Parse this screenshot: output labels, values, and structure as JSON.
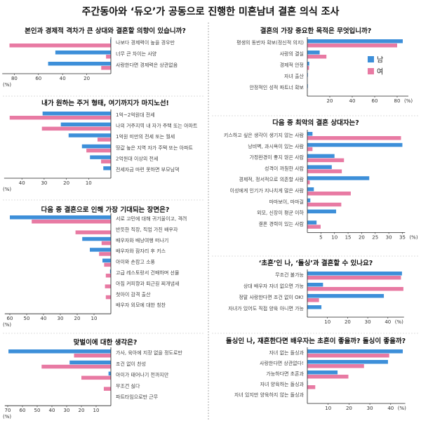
{
  "title": "주간동아와 ‘듀오’가 공동으로 진행한 미혼남녀 결혼 의식 조사",
  "legend": {
    "male": "남",
    "female": "여"
  },
  "colors": {
    "male": "#3d8fd9",
    "female": "#e87aa3",
    "axis": "#222222",
    "divider": "#999999"
  },
  "chart_data": [
    {
      "type": "bar",
      "title": "본인과 경제적 격차가 큰 상대와 결혼할 의향이 있습니까?",
      "unit_label": "(%)",
      "ticks": [
        80,
        60,
        40,
        20
      ],
      "xlim": [
        0,
        90
      ],
      "categories": [
        "나보다 경제력이 높을 경우만",
        "너무 큰 차이는 사양",
        "사랑한다면 경제력은 상관없음"
      ],
      "series": [
        {
          "name": "남",
          "values": [
            0.5,
            46,
            52
          ]
        },
        {
          "name": "여",
          "values": [
            84,
            4,
            8
          ]
        }
      ]
    },
    {
      "type": "bar",
      "title": "내가 원하는 주거 형태, 여기까지가 마지노선!",
      "unit_label": "(%)",
      "ticks": [
        40,
        30,
        20,
        10
      ],
      "xlim": [
        0,
        48
      ],
      "categories": [
        "1억~2억원대 전세",
        "나의 거주지역 내 자가 주택 또는 아파트",
        "1억원 미만의 전세 또는 월세",
        "땅값 높은 지역 자가 주택 또는 아파트",
        "2억원대 이상의 전세",
        "전세자금 마련 못하면 부모님댁"
      ],
      "series": [
        {
          "name": "남",
          "values": [
            30.7,
            22.5,
            19,
            13,
            9.4,
            3.4
          ]
        },
        {
          "name": "여",
          "values": [
            45.5,
            31,
            6,
            11,
            4.4,
            0
          ]
        }
      ]
    },
    {
      "type": "bar",
      "title": "다음 중 결혼으로 인해 가장 기대되는 장면은?",
      "unit_label": "(%)",
      "ticks": [
        60,
        50,
        40,
        30,
        20,
        10
      ],
      "xlim": [
        0,
        63
      ],
      "categories": [
        "서로 고민에 대해 귀기울이고, 격려",
        "반듯한 직장, 직업 가진 배우자",
        "배우자와 배낭여행 떠나기",
        "배우자와 잠자리 후 키스",
        "아이와 손잡고 소풍",
        "고급 레스토랑서 건배하며 선물",
        "아침 커피향과 퇴근길 찌개냄새",
        "첫아이 감격 출산",
        "배우자 외모에 대한 칭찬"
      ],
      "series": [
        {
          "name": "남",
          "values": [
            60,
            0,
            17,
            12.5,
            5,
            0.5,
            0,
            0,
            0
          ]
        },
        {
          "name": "여",
          "values": [
            47,
            21,
            5.5,
            7,
            4,
            3,
            3.5,
            3,
            0
          ]
        }
      ]
    },
    {
      "type": "bar",
      "title": "맞벌이에 대한 생각은?",
      "unit_label": "(%)",
      "ticks": [
        70,
        60,
        50,
        40,
        30,
        20,
        10
      ],
      "xlim": [
        0,
        72
      ],
      "categories": [
        "가사, 육아에 지장 없을 정도로만",
        "조건 없이 찬성",
        "아이가 태어나기 전까지만",
        "무조건 싫다",
        "파트타임으로만 근무"
      ],
      "series": [
        {
          "name": "남",
          "values": [
            69.5,
            28,
            1.6,
            0,
            0
          ]
        },
        {
          "name": "여",
          "values": [
            25,
            47,
            20,
            4.8,
            0
          ]
        }
      ]
    },
    {
      "type": "bar",
      "title": "결혼의 가장 중요한 목적은 무엇입니까?",
      "unit_label": "(%)",
      "ticks": [
        20,
        40,
        60,
        80
      ],
      "xlim": [
        0,
        90
      ],
      "categories": [
        "평생의 동반자 확보(정신적 의지)",
        "사랑의 결실",
        "경제적 안정",
        "자녀 출산",
        "안정적인 성적 파트너 확보"
      ],
      "series": [
        {
          "name": "남",
          "values": [
            85,
            11,
            1.7,
            0.5,
            0.5
          ]
        },
        {
          "name": "여",
          "values": [
            80,
            17,
            1.5,
            0,
            0
          ]
        }
      ]
    },
    {
      "type": "bar",
      "title": "다음 중 최악의 결혼 상대자는?",
      "unit_label": "(%)",
      "ticks": [
        5,
        10,
        15,
        20,
        25,
        30,
        35
      ],
      "xlim": [
        0,
        36
      ],
      "categories": [
        "키스하고 싶은 생각이 생기지 않는 사람",
        "낭비벽, 과시욕이 있는 사람",
        "가정환경이 좋지 않은 사람",
        "성격이 까칠한 사람",
        "경제적, 정서적으로 의존할 사람",
        "이성에게 인기가 지나치게 많은 사람",
        "마마보이, 마마걸",
        "외모, 신장이 평균 이하",
        "결혼 경력이 있는 사람"
      ],
      "series": [
        {
          "name": "남",
          "values": [
            1.9,
            35,
            10,
            9,
            22.8,
            2.4,
            1.1,
            10.6,
            3.4
          ]
        },
        {
          "name": "여",
          "values": [
            34.5,
            1.9,
            13.5,
            12.7,
            0.9,
            16,
            12.5,
            0,
            4.9
          ]
        }
      ]
    },
    {
      "type": "bar",
      "title": "‘초혼’인 나, ‘돌싱’과 결혼할 수 있나요?",
      "unit_label": "(%)",
      "ticks": [
        10,
        20,
        30,
        40
      ],
      "xlim": [
        0,
        48
      ],
      "categories": [
        "무조건 불가능",
        "상대 배우자 자녀 없으면 가능",
        "정말 사랑한다면 조건 없이 OK!",
        "자녀가 있어도 직접 양육 아니면 가능"
      ],
      "series": [
        {
          "name": "남",
          "values": [
            47,
            7.8,
            38,
            7
          ]
        },
        {
          "name": "여",
          "values": [
            46.5,
            47.7,
            5.8,
            0
          ]
        }
      ]
    },
    {
      "type": "bar",
      "title": "돌싱인 나, 재혼한다면 배우자는 초혼이 좋을까? 돌싱이 좋을까?",
      "unit_label": "(%)",
      "ticks": [
        10,
        20,
        30,
        40
      ],
      "xlim": [
        0,
        47
      ],
      "categories": [
        "자녀 없는 돌싱과",
        "사랑한다면 상관없다!",
        "가능하다면 초혼과",
        "자녀 양육하는 돌싱과",
        "자녀 있지만 양육하지 않는 돌싱과"
      ],
      "series": [
        {
          "name": "남",
          "values": [
            45.8,
            38.7,
            14.5,
            0.2,
            0
          ]
        },
        {
          "name": "여",
          "values": [
            39.3,
            27.2,
            19.7,
            3.8,
            0
          ]
        }
      ]
    }
  ]
}
